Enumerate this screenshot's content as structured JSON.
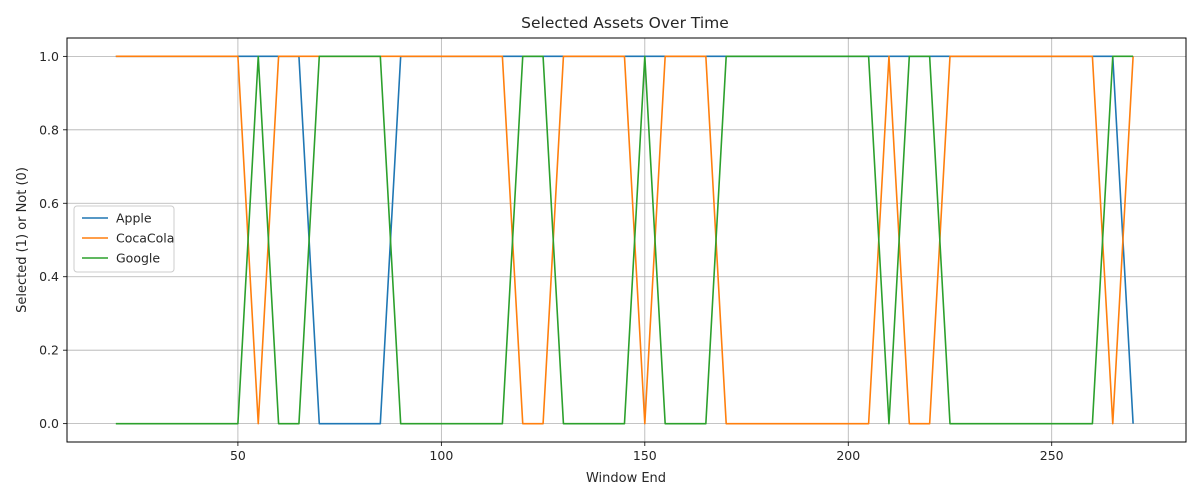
{
  "chart_data": {
    "type": "line",
    "title": "Selected Assets Over Time",
    "xlabel": "Window End",
    "ylabel": "Selected (1) or Not (0)",
    "xlim": [
      8,
      283
    ],
    "ylim": [
      -0.05,
      1.05
    ],
    "xticks": [
      50,
      100,
      150,
      200,
      250
    ],
    "yticks": [
      0.0,
      0.2,
      0.4,
      0.6,
      0.8,
      1.0
    ],
    "ytick_labels": [
      "0.0",
      "0.2",
      "0.4",
      "0.6",
      "0.8",
      "1.0"
    ],
    "grid": true,
    "legend_position": "center-left",
    "series": [
      {
        "name": "Apple",
        "color": "#1f77b4",
        "points": [
          [
            20,
            1
          ],
          [
            65,
            1
          ],
          [
            70,
            0
          ],
          [
            85,
            0
          ],
          [
            90,
            1
          ],
          [
            265,
            1
          ],
          [
            270,
            0
          ]
        ]
      },
      {
        "name": "CocaCola",
        "color": "#ff7f0e",
        "points": [
          [
            20,
            1
          ],
          [
            50,
            1
          ],
          [
            55,
            0
          ],
          [
            60,
            1
          ],
          [
            115,
            1
          ],
          [
            120,
            0
          ],
          [
            125,
            0
          ],
          [
            130,
            1
          ],
          [
            145,
            1
          ],
          [
            150,
            0
          ],
          [
            155,
            1
          ],
          [
            165,
            1
          ],
          [
            170,
            0
          ],
          [
            205,
            0
          ],
          [
            210,
            1
          ],
          [
            215,
            0
          ],
          [
            220,
            0
          ],
          [
            225,
            1
          ],
          [
            260,
            1
          ],
          [
            265,
            0
          ],
          [
            270,
            1
          ]
        ]
      },
      {
        "name": "Google",
        "color": "#2ca02c",
        "points": [
          [
            20,
            0
          ],
          [
            50,
            0
          ],
          [
            55,
            1
          ],
          [
            60,
            0
          ],
          [
            65,
            0
          ],
          [
            70,
            1
          ],
          [
            85,
            1
          ],
          [
            90,
            0
          ],
          [
            115,
            0
          ],
          [
            120,
            1
          ],
          [
            125,
            1
          ],
          [
            130,
            0
          ],
          [
            145,
            0
          ],
          [
            150,
            1
          ],
          [
            155,
            0
          ],
          [
            165,
            0
          ],
          [
            170,
            1
          ],
          [
            205,
            1
          ],
          [
            210,
            0
          ],
          [
            215,
            1
          ],
          [
            220,
            1
          ],
          [
            225,
            0
          ],
          [
            260,
            0
          ],
          [
            265,
            1
          ],
          [
            270,
            1
          ]
        ]
      }
    ]
  }
}
